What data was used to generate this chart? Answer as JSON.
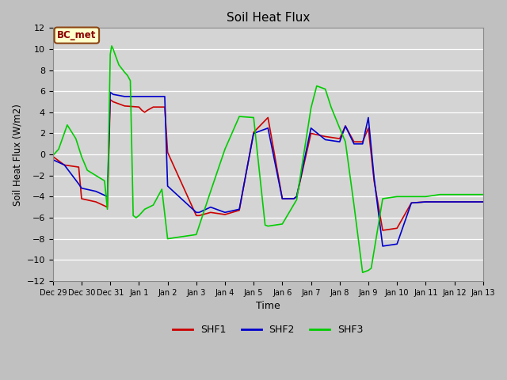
{
  "title": "Soil Heat Flux",
  "xlabel": "Time",
  "ylabel": "Soil Heat Flux (W/m2)",
  "ylim": [
    -12,
    12
  ],
  "yticks": [
    -12,
    -10,
    -8,
    -6,
    -4,
    -2,
    0,
    2,
    4,
    6,
    8,
    10,
    12
  ],
  "annotation_text": "BC_met",
  "annotation_bg": "#ffffcc",
  "annotation_border": "#8b4513",
  "annotation_text_color": "#8b0000",
  "x_labels": [
    "Dec 29",
    "Dec 30",
    "Dec 31",
    "Jan 1",
    "Jan 2",
    "Jan 3",
    "Jan 4",
    "Jan 5",
    "Jan 6",
    "Jan 7",
    "Jan 8",
    "Jan 9",
    "Jan 10",
    "Jan 11",
    "Jan 12",
    "Jan 13"
  ],
  "shf1_x": [
    0,
    0.4,
    0.9,
    1.0,
    1.5,
    1.9,
    2.0,
    2.1,
    2.5,
    3.0,
    3.1,
    3.2,
    3.3,
    3.5,
    3.9,
    4.0,
    5.0,
    5.1,
    5.5,
    6.0,
    6.5,
    7.0,
    7.5,
    8.0,
    8.4,
    8.5,
    9.0,
    9.5,
    10.0,
    10.2,
    10.5,
    10.8,
    11.0,
    11.2,
    11.5,
    12.0,
    12.5,
    13.0,
    13.4,
    14.0,
    14.5,
    15.0
  ],
  "shf1_y": [
    -0.2,
    -1.0,
    -1.2,
    -4.2,
    -4.5,
    -5.0,
    5.2,
    5.0,
    4.6,
    4.5,
    4.2,
    4.0,
    4.2,
    4.5,
    4.5,
    0.2,
    -5.8,
    -5.8,
    -5.5,
    -5.7,
    -5.3,
    2.1,
    3.5,
    -4.2,
    -4.2,
    -4.0,
    2.0,
    1.7,
    1.5,
    2.7,
    1.2,
    1.2,
    2.5,
    -2.5,
    -7.2,
    -7.0,
    -4.6,
    -4.5,
    -4.5,
    -4.5,
    -4.5,
    -4.5
  ],
  "shf2_x": [
    0,
    0.4,
    0.9,
    1.0,
    1.5,
    1.9,
    2.0,
    2.1,
    2.5,
    3.0,
    3.1,
    3.2,
    3.3,
    3.5,
    3.9,
    4.0,
    5.0,
    5.1,
    5.5,
    6.0,
    6.5,
    7.0,
    7.5,
    8.0,
    8.4,
    8.5,
    9.0,
    9.5,
    10.0,
    10.2,
    10.5,
    10.8,
    11.0,
    11.2,
    11.5,
    12.0,
    12.5,
    13.0,
    13.4,
    14.0,
    14.5,
    15.0
  ],
  "shf2_y": [
    -0.5,
    -1.0,
    -2.8,
    -3.2,
    -3.5,
    -4.0,
    5.9,
    5.7,
    5.5,
    5.5,
    5.5,
    5.5,
    5.5,
    5.5,
    5.5,
    -3.0,
    -5.5,
    -5.5,
    -5.0,
    -5.5,
    -5.2,
    2.0,
    2.5,
    -4.2,
    -4.2,
    -4.0,
    2.5,
    1.4,
    1.2,
    2.7,
    1.0,
    1.0,
    3.5,
    -2.2,
    -8.7,
    -8.5,
    -4.6,
    -4.5,
    -4.5,
    -4.5,
    -4.5,
    -4.5
  ],
  "shf3_x": [
    0,
    0.2,
    0.5,
    0.8,
    1.0,
    1.2,
    1.5,
    1.8,
    1.9,
    2.0,
    2.05,
    2.1,
    2.3,
    2.5,
    2.6,
    2.7,
    2.8,
    2.9,
    3.0,
    3.2,
    3.5,
    3.8,
    4.0,
    4.5,
    5.0,
    5.5,
    6.0,
    6.5,
    7.0,
    7.4,
    7.5,
    8.0,
    8.5,
    9.0,
    9.2,
    9.5,
    9.7,
    10.0,
    10.2,
    10.5,
    10.8,
    11.0,
    11.1,
    11.5,
    12.0,
    12.5,
    13.0,
    13.5,
    14.0,
    14.5,
    15.0
  ],
  "shf3_y": [
    -0.1,
    0.5,
    2.8,
    1.5,
    -0.2,
    -1.5,
    -2.0,
    -2.5,
    -5.2,
    9.5,
    10.3,
    10.0,
    8.5,
    7.8,
    7.5,
    7.0,
    -5.8,
    -6.0,
    -5.8,
    -5.2,
    -4.8,
    -3.3,
    -8.0,
    -7.8,
    -7.6,
    -3.5,
    0.5,
    3.6,
    3.5,
    -6.7,
    -6.8,
    -6.6,
    -4.3,
    4.4,
    6.5,
    6.2,
    4.5,
    2.5,
    1.2,
    -4.8,
    -11.2,
    -11.0,
    -10.8,
    -4.2,
    -4.0,
    -4.0,
    -4.0,
    -3.8,
    -3.8,
    -3.8,
    -3.8
  ],
  "shf1_color": "#cc0000",
  "shf2_color": "#0000cc",
  "shf3_color": "#00cc00",
  "legend_entries": [
    "SHF1",
    "SHF2",
    "SHF3"
  ],
  "fig_bg": "#c0c0c0",
  "ax_bg": "#d4d4d4",
  "grid_color": "#ffffff",
  "spine_color": "#888888"
}
